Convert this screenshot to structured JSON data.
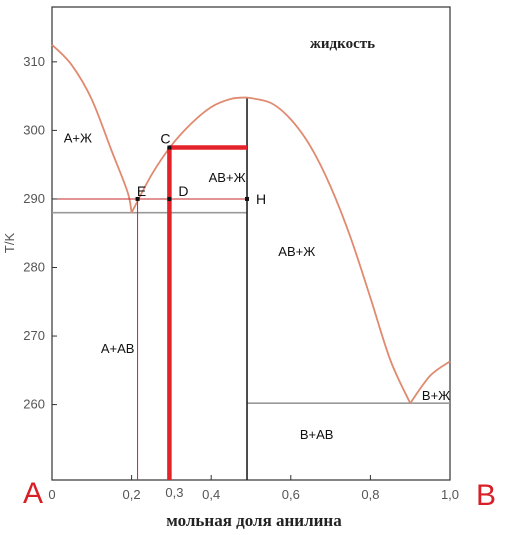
{
  "chart_data": {
    "type": "phase-diagram",
    "title": "",
    "xlabel": "мольная доля анилина",
    "ylabel": "T/K",
    "xlim": [
      0,
      1.0
    ],
    "ylim": [
      249,
      318
    ],
    "x_ticks": [
      "0",
      "0,2",
      "0,4",
      "0,6",
      "0,8",
      "1,0"
    ],
    "x_tick_values": [
      0,
      0.2,
      0.4,
      0.6,
      0.8,
      1.0
    ],
    "extra_x_tick": {
      "label": "0,3",
      "value": 0.295
    },
    "y_ticks": [
      "260",
      "270",
      "280",
      "290",
      "300",
      "310"
    ],
    "y_tick_values": [
      260,
      270,
      280,
      290,
      300,
      310
    ],
    "liquidus": [
      [
        [
          0.0,
          312.5
        ],
        [
          0.05,
          309.5
        ],
        [
          0.1,
          304.5
        ],
        [
          0.15,
          297.0
        ],
        [
          0.19,
          291.0
        ],
        [
          0.2,
          288.0
        ]
      ],
      [
        [
          0.2,
          288.0
        ],
        [
          0.25,
          293.5
        ],
        [
          0.3,
          297.8
        ],
        [
          0.35,
          301.0
        ],
        [
          0.4,
          303.4
        ],
        [
          0.45,
          304.6
        ],
        [
          0.49,
          304.8
        ]
      ],
      [
        [
          0.49,
          304.8
        ],
        [
          0.55,
          304.0
        ],
        [
          0.6,
          301.6
        ],
        [
          0.65,
          297.6
        ],
        [
          0.7,
          291.8
        ],
        [
          0.75,
          284.4
        ],
        [
          0.8,
          275.6
        ],
        [
          0.85,
          266.5
        ],
        [
          0.9,
          260.2
        ]
      ],
      [
        [
          0.9,
          260.2
        ],
        [
          0.95,
          264.2
        ],
        [
          1.0,
          266.3
        ]
      ]
    ],
    "eutectic_lines": [
      {
        "from": 0.0,
        "to": 0.49,
        "T": 288.0
      },
      {
        "from": 0.49,
        "to": 1.0,
        "T": 260.2
      }
    ],
    "compound_x": 0.49,
    "regions": [
      {
        "label": "жидкость",
        "x": 0.73,
        "T": 312.0
      },
      {
        "label": "А+Ж",
        "x": 0.065,
        "T": 298.2
      },
      {
        "label": "АВ+Ж",
        "x": 0.44,
        "T": 292.5
      },
      {
        "label": "АВ+Ж",
        "x": 0.615,
        "T": 281.7
      },
      {
        "label": "А+АВ",
        "x": 0.165,
        "T": 267.5
      },
      {
        "label": "В+АВ",
        "x": 0.665,
        "T": 255.0
      },
      {
        "label": "В+Ж",
        "x": 0.965,
        "T": 260.7
      }
    ],
    "points": [
      {
        "label": "C",
        "x": 0.295,
        "T": 297.5
      },
      {
        "label": "E",
        "x": 0.215,
        "T": 290.0
      },
      {
        "label": "D",
        "x": 0.295,
        "T": 290.0
      },
      {
        "label": "H",
        "x": 0.49,
        "T": 290.0
      }
    ],
    "guide_lines": [
      {
        "type": "h",
        "T": 290.0,
        "from": 0.0,
        "to": 0.49
      },
      {
        "type": "v",
        "x": 0.215,
        "from": 249,
        "to": 290.0
      }
    ],
    "highlight_lines": [
      {
        "type": "v",
        "x": 0.295,
        "from": 249,
        "to": 297.5
      },
      {
        "type": "h",
        "T": 297.5,
        "from": 0.295,
        "to": 0.49
      }
    ],
    "corner_labels": {
      "left": "A",
      "right": "B"
    },
    "colors": {
      "liquidus": "#e08a70",
      "eutectic": "#999999",
      "compound": "#222222",
      "guide": "#c62828",
      "highlight": "#e32329",
      "handwritten": "#d81f26"
    }
  }
}
